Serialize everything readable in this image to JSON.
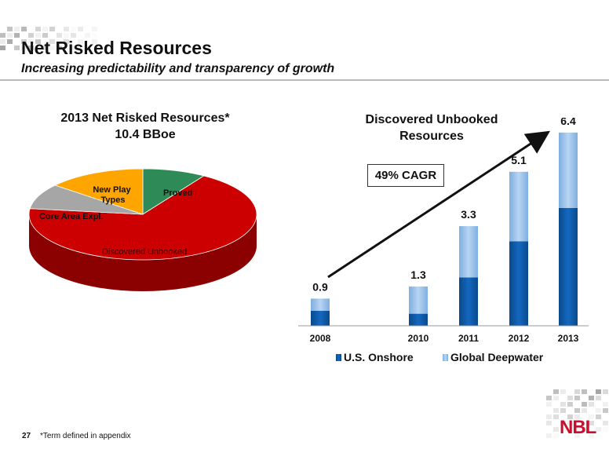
{
  "header": {
    "title": "Net Risked Resources",
    "subtitle": "Increasing predictability and transparency of growth"
  },
  "footer": {
    "page_number": "27",
    "footnote": "*Term defined in appendix",
    "logo_text": "NBL"
  },
  "annotation": {
    "cagr_label": "49% CAGR"
  },
  "colors": {
    "proved": "#2e8b57",
    "new_play_types": "#ffa500",
    "core_area_expl": "#a6a6a6",
    "discovered_unbooked": "#cc0000",
    "us_onshore": "#0d5aa7",
    "global_deepwater": "#8fb9e6"
  },
  "chart_data": [
    {
      "type": "pie",
      "title": "2013 Net Risked Resources*",
      "subtitle": "10.4 BBoe",
      "labels": [
        "Proved",
        "Discovered Unbooked",
        "Core Area Expl.",
        "New Play Types"
      ],
      "values": [
        9,
        68,
        9,
        14
      ],
      "units": "percent (estimated)",
      "style": "3d"
    },
    {
      "type": "bar",
      "stacked": true,
      "title": "Discovered Unbooked",
      "title_line2": "Resources",
      "categories": [
        "2008",
        "2010",
        "2011",
        "2012",
        "2013"
      ],
      "totals": [
        "0.9",
        "1.3",
        "3.3",
        "5.1",
        "6.4"
      ],
      "series": [
        {
          "name": "U.S. Onshore",
          "values": [
            0.5,
            0.4,
            1.6,
            2.8,
            3.9
          ]
        },
        {
          "name": "Global Deepwater",
          "values": [
            0.4,
            0.9,
            1.7,
            2.3,
            2.5
          ]
        }
      ],
      "ylim": [
        0,
        6.5
      ],
      "legend": "bottom"
    }
  ]
}
